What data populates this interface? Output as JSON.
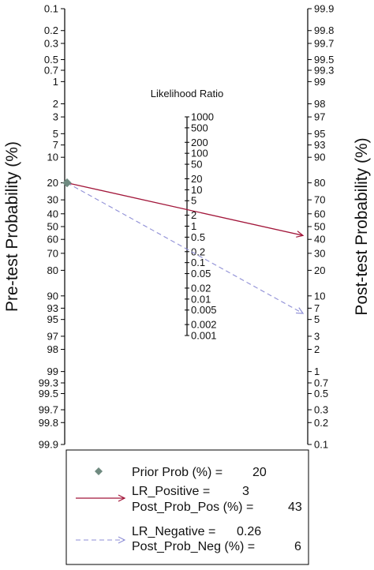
{
  "chart_data": {
    "type": "fagan_nomogram",
    "title": "",
    "left_axis": {
      "label": "Pre-test Probability (%)",
      "ticks": [
        "0.1",
        "0.2",
        "0.3",
        "0.5",
        "0.7",
        "1",
        "2",
        "3",
        "5",
        "7",
        "10",
        "20",
        "30",
        "40",
        "50",
        "60",
        "70",
        "80",
        "90",
        "93",
        "95",
        "97",
        "98",
        "99",
        "99.3",
        "99.5",
        "99.7",
        "99.8",
        "99.9"
      ]
    },
    "middle_axis": {
      "label": "Likelihood Ratio",
      "ticks": [
        "1000",
        "500",
        "200",
        "100",
        "50",
        "20",
        "10",
        "5",
        "2",
        "1",
        "0.5",
        "0.2",
        "0.1",
        "0.05",
        "0.02",
        "0.01",
        "0.005",
        "0.002",
        "0.001"
      ]
    },
    "right_axis": {
      "label": "Post-test Probability (%)",
      "ticks": [
        "99.9",
        "99.8",
        "99.7",
        "99.5",
        "99.3",
        "99",
        "98",
        "97",
        "95",
        "93",
        "90",
        "80",
        "70",
        "60",
        "50",
        "40",
        "30",
        "20",
        "10",
        "7",
        "5",
        "3",
        "2",
        "1",
        "0.7",
        "0.5",
        "0.3",
        "0.2",
        "0.1"
      ]
    },
    "prior_prob": 20,
    "series": [
      {
        "name": "LR_Positive",
        "lr": 3,
        "post_prob": 43,
        "color": "#a2163a",
        "dash": "solid"
      },
      {
        "name": "LR_Negative",
        "lr": 0.26,
        "post_prob": 6,
        "color": "#8f8fd6",
        "dash": "dashed"
      }
    ],
    "legend": {
      "prior_label": "Prior Prob (%) =",
      "prior_value": "20",
      "pos_lr_label": "LR_Positive =",
      "pos_lr_value": "3",
      "pos_post_label": "Post_Prob_Pos (%) =",
      "pos_post_value": "43",
      "neg_lr_label": "LR_Negative =",
      "neg_lr_value": "0.26",
      "neg_post_label": "Post_Prob_Neg (%) =",
      "neg_post_value": "6"
    },
    "colors": {
      "marker": "#6f8a80",
      "axis": "#000000"
    }
  }
}
